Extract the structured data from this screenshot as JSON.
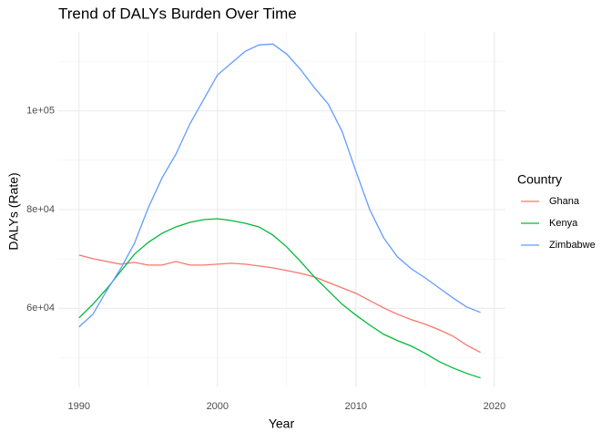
{
  "chart_data": {
    "type": "line",
    "title": "Trend of DALYs Burden Over Time",
    "x_label": "Year",
    "y_label": "DALYs (Rate)",
    "legend_title": "Country",
    "legend": "right",
    "grid": true,
    "x": [
      1990,
      1991,
      1992,
      1993,
      1994,
      1995,
      1996,
      1997,
      1998,
      1999,
      2000,
      2001,
      2002,
      2003,
      2004,
      2005,
      2006,
      2007,
      2008,
      2009,
      2010,
      2011,
      2012,
      2013,
      2014,
      2015,
      2016,
      2017,
      2018,
      2019
    ],
    "series": [
      {
        "name": "Ghana",
        "color": "#f8766d",
        "values": [
          70785,
          70048,
          69495,
          68942,
          69311,
          68758,
          68758,
          69495,
          68758,
          68758,
          68942,
          69127,
          68942,
          68574,
          68205,
          67652,
          67099,
          66362,
          65256,
          64150,
          63044,
          61570,
          60096,
          58806,
          57700,
          56778,
          55672,
          54382,
          52539,
          51065
        ]
      },
      {
        "name": "Kenya",
        "color": "#00ba38",
        "values": [
          58069,
          60833,
          63967,
          67468,
          70970,
          73365,
          75208,
          76498,
          77420,
          77973,
          78157,
          77788,
          77236,
          76498,
          74840,
          72444,
          69495,
          66362,
          63598,
          60833,
          58622,
          56595,
          54752,
          53462,
          52356,
          50881,
          49223,
          47932,
          46827,
          45905
        ]
      },
      {
        "name": "Zimbabwe",
        "color": "#619cff",
        "values": [
          56225,
          58806,
          63598,
          68021,
          73181,
          80369,
          86451,
          91242,
          97324,
          102300,
          107276,
          109672,
          112068,
          113358,
          113543,
          111516,
          108382,
          104696,
          101379,
          95850,
          87741,
          80000,
          74287,
          70416,
          68021,
          66178,
          64150,
          62123,
          60280,
          59174
        ]
      }
    ],
    "xlim": [
      1988.5,
      2020.8
    ],
    "ylim": [
      44000,
      116000
    ],
    "xticks": [
      1990,
      2000,
      2010,
      2020
    ],
    "yticks": [
      {
        "value": 60000,
        "label": "6e+04"
      },
      {
        "value": 80000,
        "label": "8e+04"
      },
      {
        "value": 100000,
        "label": "1e+05"
      }
    ],
    "x_minor_grid": [
      1995,
      2005,
      2015
    ],
    "y_minor_grid": [
      50000,
      70000,
      90000,
      110000
    ]
  }
}
